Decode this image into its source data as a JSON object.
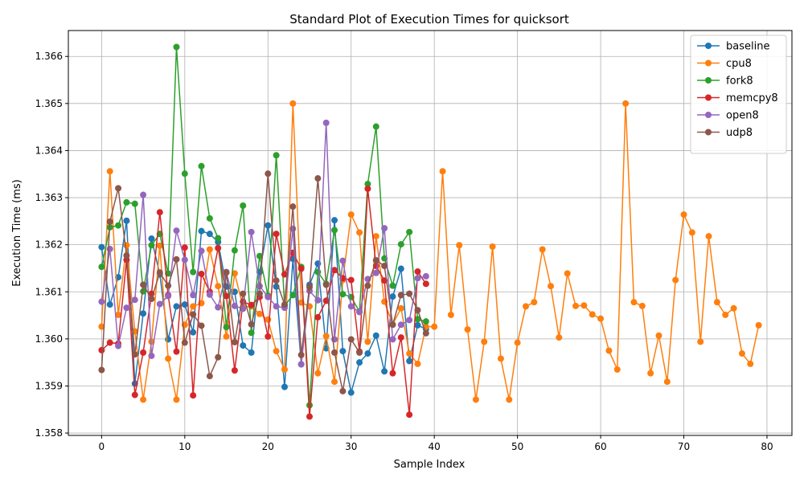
{
  "chart_data": {
    "type": "line",
    "title": "Standard Plot of Execution Times for quicksort",
    "xlabel": "Sample Index",
    "ylabel": "Execution Time (ms)",
    "xlim": [
      -4,
      83
    ],
    "ylim": [
      1.35795,
      1.36655
    ],
    "xticks": [
      0,
      10,
      20,
      30,
      40,
      50,
      60,
      70,
      80
    ],
    "yticks": [
      1.358,
      1.359,
      1.36,
      1.361,
      1.362,
      1.363,
      1.364,
      1.365,
      1.366
    ],
    "grid": true,
    "legend_position": "top-right",
    "series": [
      {
        "name": "baseline",
        "color": "#1f77b4",
        "y": [
          1.36195,
          1.36073,
          1.36131,
          1.36251,
          1.35905,
          1.36054,
          1.36213,
          1.36137,
          1.35999,
          1.36069,
          1.36073,
          1.36014,
          1.36229,
          1.36223,
          1.36206,
          1.36111,
          1.361,
          1.35986,
          1.35971,
          1.36142,
          1.36241,
          1.36111,
          1.35898,
          1.3617,
          1.35946,
          1.36115,
          1.3616,
          1.3598,
          1.36252,
          1.35974,
          1.35886,
          1.3595,
          1.35969,
          1.36007,
          1.35931,
          1.3609,
          1.36149,
          1.35953,
          1.36029,
          1.36021
        ]
      },
      {
        "name": "cpu8",
        "color": "#ff7f0e",
        "y": [
          1.36026,
          1.36356,
          1.36051,
          1.36199,
          1.36016,
          1.35871,
          1.35994,
          1.36198,
          1.35958,
          1.35871,
          1.3603,
          1.36069,
          1.36076,
          1.3619,
          1.36112,
          1.36005,
          1.36139,
          1.36068,
          1.36069,
          1.36053,
          1.36041,
          1.35974,
          1.35935,
          1.365,
          1.36077,
          1.36069,
          1.35927,
          1.36006,
          1.35909,
          1.36125,
          1.36264,
          1.36226,
          1.35994,
          1.36218,
          1.36079,
          1.36031,
          1.36065,
          1.35969,
          1.35947,
          1.36026,
          1.36026,
          1.36356,
          1.36051,
          1.36199,
          1.3602,
          1.35871,
          1.35994,
          1.36196,
          1.35958,
          1.35871,
          1.35992,
          1.36069,
          1.36078,
          1.3619,
          1.36112,
          1.36003,
          1.36139,
          1.3607,
          1.36071,
          1.36052,
          1.36043,
          1.35975,
          1.35935,
          1.365,
          1.36078,
          1.3607,
          1.35927,
          1.36007,
          1.35909,
          1.36125,
          1.36264,
          1.36226,
          1.35994,
          1.36218,
          1.36078,
          1.36051,
          1.36065,
          1.35969,
          1.35947,
          1.36029
        ]
      },
      {
        "name": "fork8",
        "color": "#2ca02c",
        "y": [
          1.36153,
          1.36237,
          1.36241,
          1.3629,
          1.36287,
          1.36101,
          1.36199,
          1.36223,
          1.36139,
          1.3662,
          1.36351,
          1.36142,
          1.36367,
          1.36256,
          1.36214,
          1.36025,
          1.36188,
          1.36283,
          1.36013,
          1.36176,
          1.36092,
          1.3639,
          1.3607,
          1.36093,
          1.36153,
          1.35859,
          1.36142,
          1.36117,
          1.36231,
          1.36095,
          1.36089,
          1.36058,
          1.36329,
          1.36451,
          1.36171,
          1.36113,
          1.36201,
          1.36227,
          1.36042,
          1.36037
        ]
      },
      {
        "name": "memcpy8",
        "color": "#d62728",
        "y": [
          1.35976,
          1.35992,
          1.3599,
          1.36168,
          1.35881,
          1.35971,
          1.36096,
          1.36269,
          1.36093,
          1.35973,
          1.36194,
          1.3588,
          1.36138,
          1.361,
          1.36193,
          1.36091,
          1.35933,
          1.36079,
          1.36072,
          1.36089,
          1.36005,
          1.36223,
          1.36137,
          1.36183,
          1.36149,
          1.35835,
          1.36046,
          1.36081,
          1.36146,
          1.36129,
          1.36125,
          1.35973,
          1.36319,
          1.36155,
          1.36124,
          1.35927,
          1.36003,
          1.35839,
          1.36143,
          1.36117
        ]
      },
      {
        "name": "open8",
        "color": "#9467bd",
        "y": [
          1.36079,
          1.36191,
          1.35985,
          1.36066,
          1.36083,
          1.36306,
          1.35964,
          1.36074,
          1.36091,
          1.3623,
          1.36168,
          1.36093,
          1.36187,
          1.36094,
          1.36067,
          1.36142,
          1.3607,
          1.36064,
          1.36227,
          1.36112,
          1.36089,
          1.36069,
          1.36066,
          1.36234,
          1.35946,
          1.36102,
          1.36082,
          1.36459,
          1.35999,
          1.36166,
          1.36069,
          1.36057,
          1.36127,
          1.3614,
          1.36235,
          1.35999,
          1.3603,
          1.3604,
          1.36129,
          1.36133
        ]
      },
      {
        "name": "udp8",
        "color": "#8c564b",
        "y": [
          1.35934,
          1.36249,
          1.3632,
          1.36177,
          1.35967,
          1.36115,
          1.36085,
          1.36141,
          1.36113,
          1.36169,
          1.35992,
          1.36052,
          1.36028,
          1.35921,
          1.35961,
          1.36141,
          1.35993,
          1.36096,
          1.36031,
          1.36096,
          1.36351,
          1.36124,
          1.36073,
          1.36281,
          1.35966,
          1.3611,
          1.36341,
          1.36115,
          1.35971,
          1.35889,
          1.35999,
          1.35971,
          1.36113,
          1.36167,
          1.36155,
          1.3603,
          1.36093,
          1.36096,
          1.36061,
          1.36012
        ]
      }
    ]
  }
}
